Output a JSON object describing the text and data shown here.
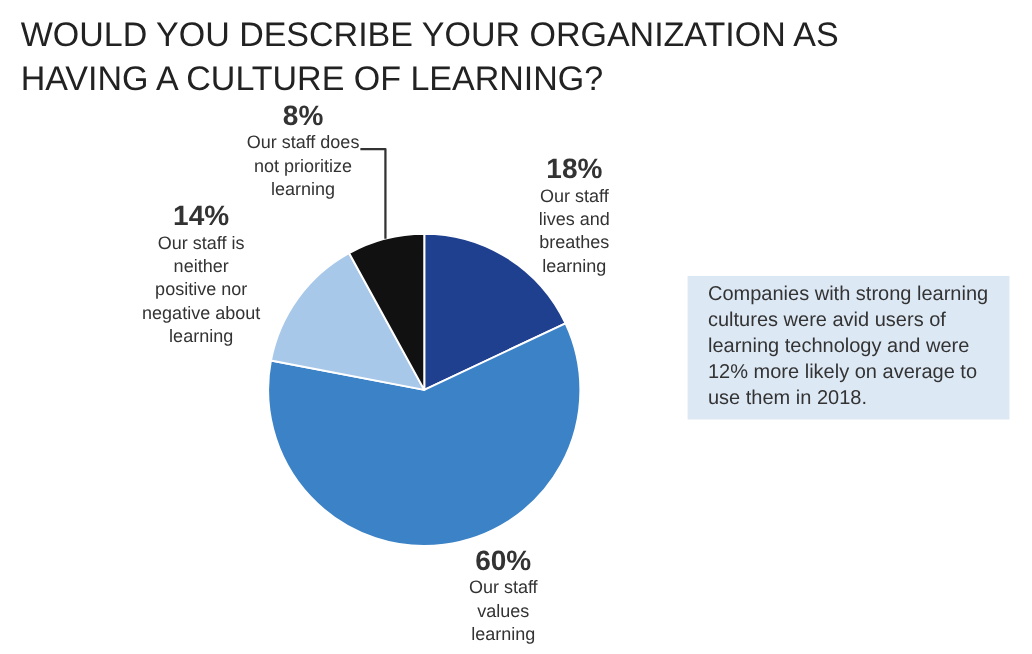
{
  "chart_data": {
    "type": "pie",
    "title": "WOULD YOU DESCRIBE YOUR ORGANIZATION AS HAVING A CULTURE OF LEARNING?",
    "categories": [
      "Our staff lives and breathes learning",
      "Our staff values learning",
      "Our staff is neither positive nor negative about learning",
      "Our staff does not prioritize learning"
    ],
    "values": [
      18,
      60,
      14,
      8
    ],
    "colors": [
      "#1f3f8f",
      "#3b82c6",
      "#a8c8ea",
      "#111111"
    ],
    "value_labels": [
      "18%",
      "60%",
      "14%",
      "8%"
    ],
    "legend": false,
    "annotations": [
      "Companies with strong learning cultures were avid users of learning technology and were 12% more likely on average to use them in 2018."
    ]
  }
}
